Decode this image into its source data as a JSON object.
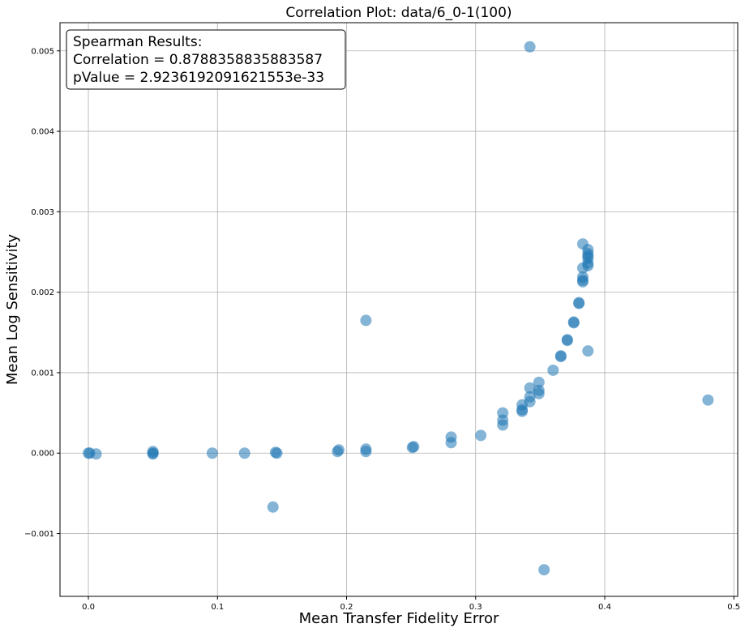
{
  "chart_data": {
    "type": "scatter",
    "title": "Correlation Plot: data/6_0-1(100)",
    "xlabel": "Mean Transfer Fidelity Error",
    "ylabel": "Mean Log Sensitivity",
    "xlim": [
      -0.022,
      0.503
    ],
    "ylim": [
      -0.00178,
      0.00535
    ],
    "xticks": [
      0.0,
      0.1,
      0.2,
      0.3,
      0.4,
      0.5
    ],
    "xtick_labels": [
      "0.0",
      "0.1",
      "0.2",
      "0.3",
      "0.4",
      "0.5"
    ],
    "yticks": [
      -0.001,
      0.0,
      0.001,
      0.002,
      0.003,
      0.004,
      0.005
    ],
    "ytick_labels": [
      "−0.001",
      "0.000",
      "0.001",
      "0.002",
      "0.003",
      "0.004",
      "0.005"
    ],
    "grid": true,
    "marker_color": "#1f77b4",
    "annotation": {
      "lines": [
        "Spearman Results:",
        "Correlation = 0.8788358835883587",
        "pValue = 2.9236192091621553e-33"
      ],
      "placement": "top-left"
    },
    "points": [
      [
        0.0,
        0.0
      ],
      [
        0.001,
        0.0
      ],
      [
        0.006,
        -1e-05
      ],
      [
        0.05,
        0.0
      ],
      [
        0.05,
        2e-05
      ],
      [
        0.05,
        -1e-05
      ],
      [
        0.096,
        0.0
      ],
      [
        0.121,
        0.0
      ],
      [
        0.145,
        1e-05
      ],
      [
        0.146,
        0.0
      ],
      [
        0.143,
        -0.00067
      ],
      [
        0.193,
        2e-05
      ],
      [
        0.194,
        4e-05
      ],
      [
        0.215,
        2e-05
      ],
      [
        0.215,
        5e-05
      ],
      [
        0.215,
        0.00165
      ],
      [
        0.251,
        7e-05
      ],
      [
        0.252,
        8e-05
      ],
      [
        0.281,
        0.00013
      ],
      [
        0.281,
        0.0002
      ],
      [
        0.304,
        0.00022
      ],
      [
        0.321,
        0.00035
      ],
      [
        0.321,
        0.00041
      ],
      [
        0.321,
        0.0005
      ],
      [
        0.336,
        0.00052
      ],
      [
        0.336,
        0.00054
      ],
      [
        0.336,
        0.0006
      ],
      [
        0.342,
        0.00064
      ],
      [
        0.342,
        0.0007
      ],
      [
        0.342,
        0.00081
      ],
      [
        0.342,
        0.00505
      ],
      [
        0.349,
        0.00074
      ],
      [
        0.349,
        0.00078
      ],
      [
        0.349,
        0.00088
      ],
      [
        0.353,
        -0.00145
      ],
      [
        0.36,
        0.00103
      ],
      [
        0.366,
        0.0012
      ],
      [
        0.366,
        0.00121
      ],
      [
        0.371,
        0.0014
      ],
      [
        0.371,
        0.00141
      ],
      [
        0.376,
        0.00162
      ],
      [
        0.376,
        0.00163
      ],
      [
        0.38,
        0.00186
      ],
      [
        0.38,
        0.00187
      ],
      [
        0.383,
        0.00213
      ],
      [
        0.383,
        0.00215
      ],
      [
        0.383,
        0.00219
      ],
      [
        0.383,
        0.0023
      ],
      [
        0.383,
        0.0026
      ],
      [
        0.387,
        0.00127
      ],
      [
        0.387,
        0.00233
      ],
      [
        0.387,
        0.00236
      ],
      [
        0.387,
        0.00242
      ],
      [
        0.387,
        0.00245
      ],
      [
        0.387,
        0.00248
      ],
      [
        0.387,
        0.00253
      ],
      [
        0.48,
        0.00066
      ]
    ]
  }
}
